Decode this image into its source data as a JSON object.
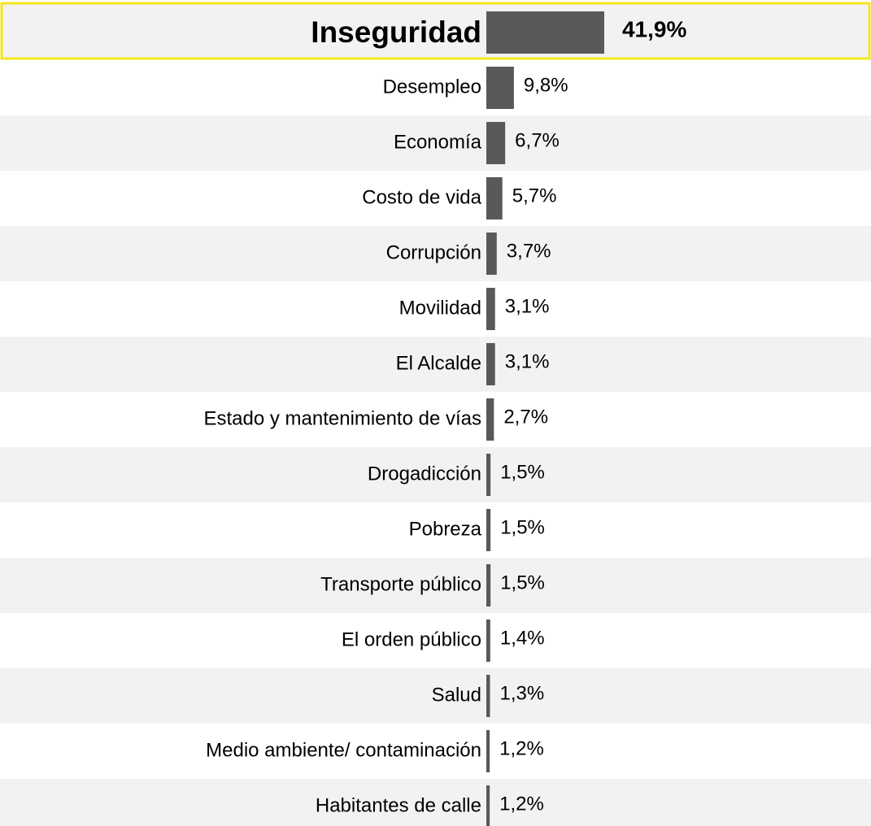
{
  "chart_data": {
    "type": "bar",
    "orientation": "horizontal",
    "categories": [
      "Inseguridad",
      "Desempleo",
      "Economía",
      "Costo de vida",
      "Corrupción",
      "Movilidad",
      "El Alcalde",
      "Estado y mantenimiento de vías",
      "Drogadicción",
      "Pobreza",
      "Transporte público",
      "El orden público",
      "Salud",
      "Medio ambiente/ contaminación",
      "Habitantes de calle"
    ],
    "values": [
      41.9,
      9.8,
      6.7,
      5.7,
      3.7,
      3.1,
      3.1,
      2.7,
      1.5,
      1.5,
      1.5,
      1.4,
      1.3,
      1.2,
      1.2
    ],
    "value_labels": [
      "41,9%",
      "9,8%",
      "6,7%",
      "5,7%",
      "3,7%",
      "3,1%",
      "3,1%",
      "2,7%",
      "1,5%",
      "1,5%",
      "1,5%",
      "1,4%",
      "1,3%",
      "1,2%",
      "1,2%"
    ],
    "color": "#595959"
  }
}
